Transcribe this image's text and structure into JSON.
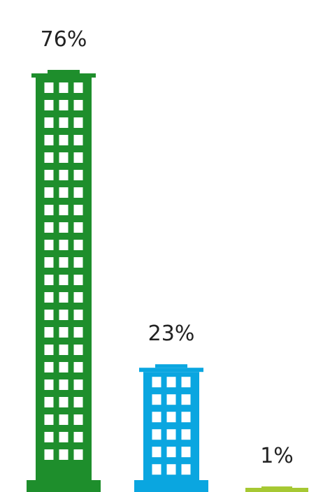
{
  "chart_data": {
    "type": "bar",
    "style": "building pictogram",
    "categories": [
      "",
      "",
      ""
    ],
    "values": [
      76,
      23,
      1
    ],
    "labels": [
      "76%",
      "23%",
      "1%"
    ],
    "colors": [
      "#1e8e2c",
      "#0aa6e0",
      "#a6c832"
    ],
    "ylim": [
      0,
      76
    ],
    "grid": false,
    "legend": "none"
  }
}
